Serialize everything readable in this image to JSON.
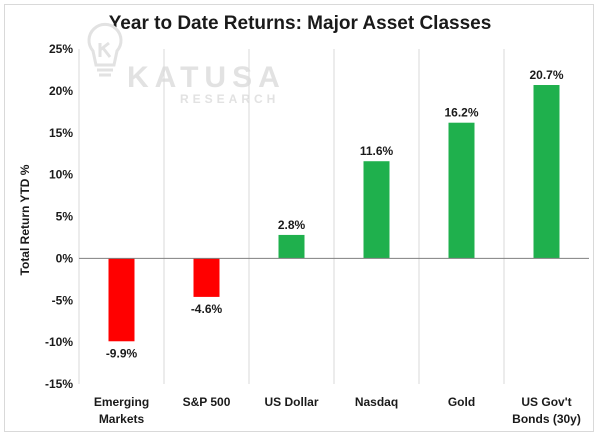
{
  "chart_data": {
    "type": "bar",
    "title": "Year to Date Returns: Major Asset Classes",
    "ylabel": "Total Return YTD %",
    "xlabel": "",
    "ylim": [
      -15,
      25
    ],
    "yticks": [
      -15,
      -10,
      -5,
      0,
      5,
      10,
      15,
      20,
      25
    ],
    "ytick_labels": [
      "-15%",
      "-10%",
      "-5%",
      "0%",
      "5%",
      "10%",
      "15%",
      "20%",
      "25%"
    ],
    "categories": [
      [
        "Emerging",
        "Markets"
      ],
      [
        "S&P 500"
      ],
      [
        "US Dollar"
      ],
      [
        "Nasdaq"
      ],
      [
        "Gold"
      ],
      [
        "US Gov't",
        "Bonds (30y)"
      ]
    ],
    "values": [
      -9.9,
      -4.6,
      2.8,
      11.6,
      16.2,
      20.7
    ],
    "data_labels": [
      "-9.9%",
      "-4.6%",
      "2.8%",
      "11.6%",
      "16.2%",
      "20.7%"
    ],
    "colors": {
      "positive": "#1fb04d",
      "negative": "#ff0000"
    },
    "grid": "vertical category separators",
    "legend": "none"
  },
  "watermark": {
    "name": "KATUSA",
    "sub": "RESEARCH",
    "icon": "lightbulb-k-logo"
  }
}
